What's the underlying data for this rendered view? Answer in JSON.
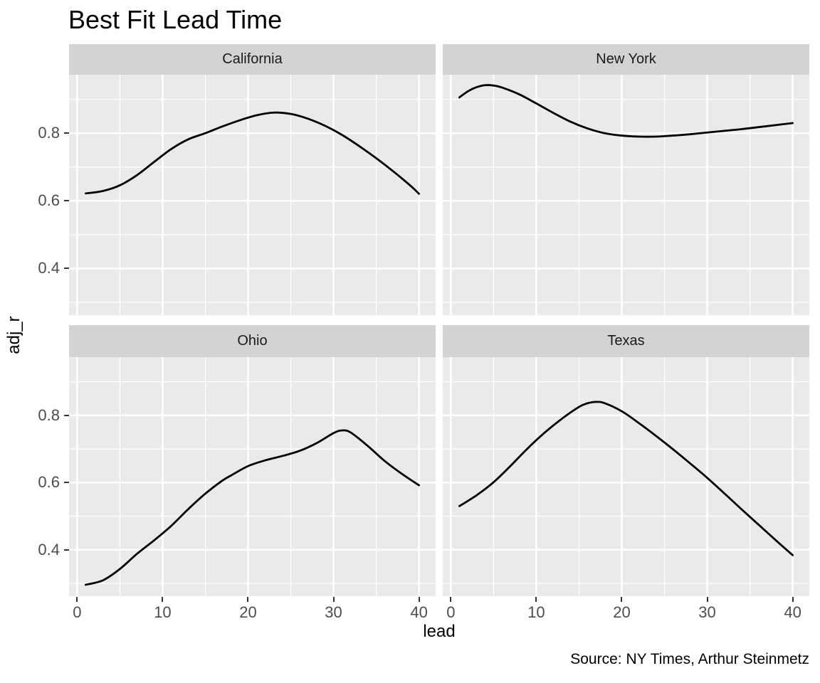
{
  "title": "Best Fit Lead Time",
  "caption": "Source: NY Times, Arthur Steinmetz",
  "x_axis_label": "lead",
  "y_axis_label": "adj_r",
  "chart_data": {
    "type": "line",
    "title": "Best Fit Lead Time",
    "xlabel": "lead",
    "ylabel": "adj_r",
    "legend": "none",
    "grid": "on",
    "x_domain": [
      -0.95,
      41.95
    ],
    "y_domain": [
      0.262,
      0.973
    ],
    "x_ticks": [
      0,
      10,
      20,
      30,
      40
    ],
    "x_tick_labels": [
      "0",
      "10",
      "20",
      "30",
      "40"
    ],
    "x_minor_ticks": [
      5,
      15,
      25,
      35
    ],
    "y_ticks": [
      0.4,
      0.6,
      0.8
    ],
    "y_tick_labels": [
      "0.4",
      "0.6",
      "0.8"
    ],
    "y_minor_ticks": [
      0.3,
      0.5,
      0.7,
      0.9
    ],
    "panel_bg": "#EAEAEA",
    "strip_bg": "#D3D3D3",
    "grid_color": "#FFFFFF",
    "line_color": "#000000",
    "facets": [
      {
        "name": "California",
        "points": [
          [
            1,
            0.622
          ],
          [
            3,
            0.629
          ],
          [
            5,
            0.646
          ],
          [
            7,
            0.676
          ],
          [
            9,
            0.715
          ],
          [
            11,
            0.753
          ],
          [
            13,
            0.782
          ],
          [
            15,
            0.8
          ],
          [
            17,
            0.82
          ],
          [
            19,
            0.838
          ],
          [
            21,
            0.853
          ],
          [
            23,
            0.861
          ],
          [
            25,
            0.857
          ],
          [
            27,
            0.843
          ],
          [
            29,
            0.822
          ],
          [
            31,
            0.795
          ],
          [
            33,
            0.762
          ],
          [
            35,
            0.726
          ],
          [
            37,
            0.687
          ],
          [
            39,
            0.645
          ],
          [
            40,
            0.621
          ]
        ]
      },
      {
        "name": "New York",
        "points": [
          [
            1,
            0.906
          ],
          [
            2,
            0.924
          ],
          [
            3,
            0.936
          ],
          [
            4,
            0.942
          ],
          [
            5,
            0.941
          ],
          [
            6,
            0.935
          ],
          [
            8,
            0.915
          ],
          [
            10,
            0.888
          ],
          [
            12,
            0.86
          ],
          [
            14,
            0.834
          ],
          [
            16,
            0.814
          ],
          [
            18,
            0.8
          ],
          [
            20,
            0.793
          ],
          [
            22,
            0.79
          ],
          [
            24,
            0.79
          ],
          [
            26,
            0.793
          ],
          [
            28,
            0.797
          ],
          [
            30,
            0.802
          ],
          [
            32,
            0.807
          ],
          [
            34,
            0.812
          ],
          [
            36,
            0.818
          ],
          [
            38,
            0.824
          ],
          [
            40,
            0.83
          ]
        ]
      },
      {
        "name": "Ohio",
        "points": [
          [
            1,
            0.296
          ],
          [
            3,
            0.309
          ],
          [
            5,
            0.343
          ],
          [
            7,
            0.388
          ],
          [
            9,
            0.428
          ],
          [
            11,
            0.471
          ],
          [
            13,
            0.521
          ],
          [
            15,
            0.567
          ],
          [
            17,
            0.606
          ],
          [
            18,
            0.621
          ],
          [
            20,
            0.649
          ],
          [
            22,
            0.666
          ],
          [
            24,
            0.679
          ],
          [
            26,
            0.694
          ],
          [
            28,
            0.717
          ],
          [
            30,
            0.747
          ],
          [
            31,
            0.755
          ],
          [
            32,
            0.749
          ],
          [
            34,
            0.709
          ],
          [
            36,
            0.664
          ],
          [
            38,
            0.626
          ],
          [
            40,
            0.592
          ]
        ]
      },
      {
        "name": "Texas",
        "points": [
          [
            1,
            0.53
          ],
          [
            3,
            0.562
          ],
          [
            5,
            0.601
          ],
          [
            7,
            0.65
          ],
          [
            9,
            0.702
          ],
          [
            11,
            0.749
          ],
          [
            13,
            0.79
          ],
          [
            15,
            0.825
          ],
          [
            16,
            0.836
          ],
          [
            17,
            0.84
          ],
          [
            18,
            0.836
          ],
          [
            20,
            0.812
          ],
          [
            22,
            0.777
          ],
          [
            24,
            0.739
          ],
          [
            26,
            0.699
          ],
          [
            28,
            0.657
          ],
          [
            30,
            0.614
          ],
          [
            32,
            0.568
          ],
          [
            34,
            0.521
          ],
          [
            36,
            0.475
          ],
          [
            38,
            0.429
          ],
          [
            40,
            0.384
          ]
        ]
      }
    ]
  }
}
